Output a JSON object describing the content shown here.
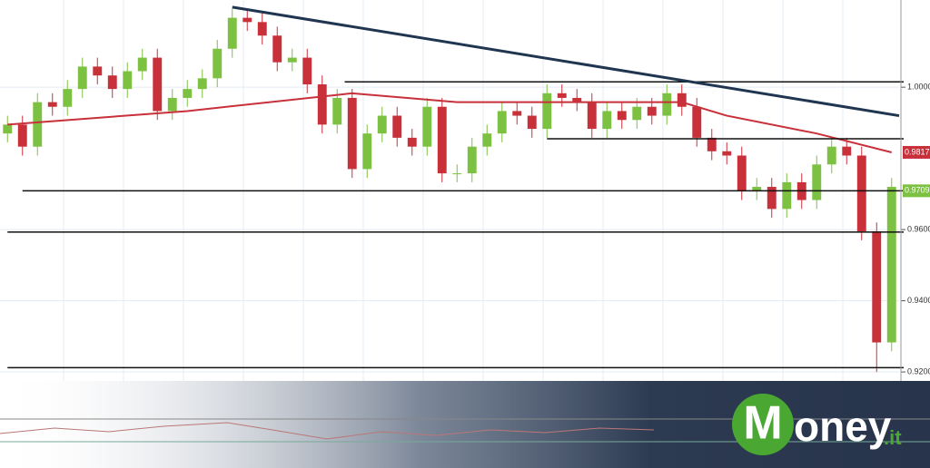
{
  "chart_data": {
    "type": "candlestick",
    "ylim": [
      0.9185,
      1.0245
    ],
    "yticks": [
      {
        "value": 0.92,
        "label": "0.9200"
      },
      {
        "value": 0.94,
        "label": "0.9400"
      },
      {
        "value": 0.96,
        "label": "0.9600"
      },
      {
        "value": 1.0,
        "label": "1.0000"
      }
    ],
    "open": [
      0.987,
      0.9895,
      0.9833,
      0.9958,
      0.9945,
      0.9995,
      1.0058,
      1.0033,
      0.9995,
      1.0045,
      1.0083,
      0.9933,
      0.997,
      0.9995,
      1.0025,
      1.0108,
      1.0195,
      1.0183,
      1.0145,
      1.007,
      1.0083,
      1.0008,
      0.9895,
      0.997,
      0.977,
      0.987,
      0.992,
      0.9858,
      0.9833,
      0.9945,
      0.9758,
      0.9758,
      0.9833,
      0.987,
      0.9933,
      0.992,
      0.9883,
      0.9983,
      0.997,
      0.9958,
      0.9883,
      0.9933,
      0.9908,
      0.9945,
      0.992,
      0.9983,
      0.9945,
      0.9858,
      0.982,
      0.9808,
      0.9708,
      0.972,
      0.9658,
      0.9733,
      0.9683,
      0.9783,
      0.9833,
      0.9808,
      0.9595,
      0.9283
    ],
    "high": [
      0.992,
      0.992,
      0.9983,
      0.9983,
      1.002,
      1.0083,
      1.0083,
      1.0058,
      1.007,
      1.0108,
      1.0108,
      0.9995,
      1.002,
      1.005,
      1.0133,
      1.022,
      1.022,
      1.0208,
      1.017,
      1.0108,
      1.0108,
      1.0033,
      0.9995,
      0.9995,
      0.9895,
      0.9945,
      0.9945,
      0.9883,
      0.997,
      0.997,
      0.9783,
      0.9858,
      0.9895,
      0.9958,
      0.9958,
      0.9945,
      1.0008,
      1.0008,
      0.9995,
      0.9983,
      0.9958,
      0.9958,
      0.997,
      0.997,
      1.0008,
      1.0008,
      0.997,
      0.9883,
      0.9845,
      0.9833,
      0.9745,
      0.9745,
      0.9758,
      0.9758,
      0.9808,
      0.9858,
      0.9858,
      0.9833,
      0.962,
      0.9745
    ],
    "low": [
      0.9845,
      0.9808,
      0.9808,
      0.992,
      0.992,
      0.997,
      1.0008,
      0.997,
      0.997,
      1.002,
      0.9908,
      0.9908,
      0.9945,
      0.997,
      1.0,
      1.0083,
      1.0158,
      1.012,
      1.0045,
      1.0045,
      0.9983,
      0.987,
      0.987,
      0.9745,
      0.9745,
      0.9845,
      0.9833,
      0.9808,
      0.9808,
      0.9733,
      0.9733,
      0.9733,
      0.9808,
      0.9845,
      0.9895,
      0.9858,
      0.9858,
      0.9945,
      0.9933,
      0.9858,
      0.9858,
      0.9883,
      0.9883,
      0.9895,
      0.9895,
      0.992,
      0.9833,
      0.9795,
      0.9783,
      0.9683,
      0.9683,
      0.9633,
      0.9633,
      0.9658,
      0.9658,
      0.9758,
      0.9783,
      0.957,
      0.92,
      0.9258
    ],
    "close": [
      0.9895,
      0.9833,
      0.9958,
      0.9945,
      0.9995,
      1.0058,
      1.0033,
      0.9995,
      1.0045,
      1.0083,
      0.9933,
      0.997,
      0.9995,
      1.0025,
      1.0108,
      1.0195,
      1.0183,
      1.0145,
      1.007,
      1.0083,
      1.0008,
      0.9895,
      0.997,
      0.977,
      0.987,
      0.992,
      0.9858,
      0.9833,
      0.9945,
      0.9758,
      0.9758,
      0.9833,
      0.987,
      0.9933,
      0.992,
      0.9883,
      0.9983,
      0.997,
      0.9958,
      0.9883,
      0.9933,
      0.9908,
      0.9945,
      0.992,
      0.9983,
      0.9945,
      0.9858,
      0.982,
      0.9808,
      0.9708,
      0.972,
      0.9658,
      0.9733,
      0.9683,
      0.9783,
      0.9833,
      0.9808,
      0.9595,
      0.9283,
      0.972
    ],
    "up_color": "#7dc142",
    "down_color": "#c8303a",
    "moving_average": {
      "color": "#c8303a",
      "x": [
        0,
        12,
        23,
        30,
        45,
        48,
        54,
        59
      ],
      "values": [
        0.9895,
        0.9933,
        0.9983,
        0.9958,
        0.9958,
        0.992,
        0.987,
        0.9817
      ]
    },
    "trend_line": {
      "color": "#1f3550",
      "x": [
        15,
        59.5
      ],
      "values": [
        1.0225,
        0.992
      ]
    },
    "levels": [
      {
        "value": 1.0015,
        "x": [
          22.5,
          60
        ]
      },
      {
        "value": 0.9855,
        "x": [
          36,
          60
        ]
      },
      {
        "value": 0.9709,
        "x": [
          1,
          60
        ]
      },
      {
        "value": 0.9593,
        "x": [
          0,
          60
        ]
      },
      {
        "value": 0.9212,
        "x": [
          0,
          60
        ]
      }
    ],
    "price_labels": [
      {
        "value": 0.9817,
        "color": "#c8303a"
      },
      {
        "value": 0.9709,
        "color": "#7dc142"
      }
    ],
    "logo": {
      "initial": "M",
      "rest": "oney",
      "suffix": ".it"
    }
  }
}
